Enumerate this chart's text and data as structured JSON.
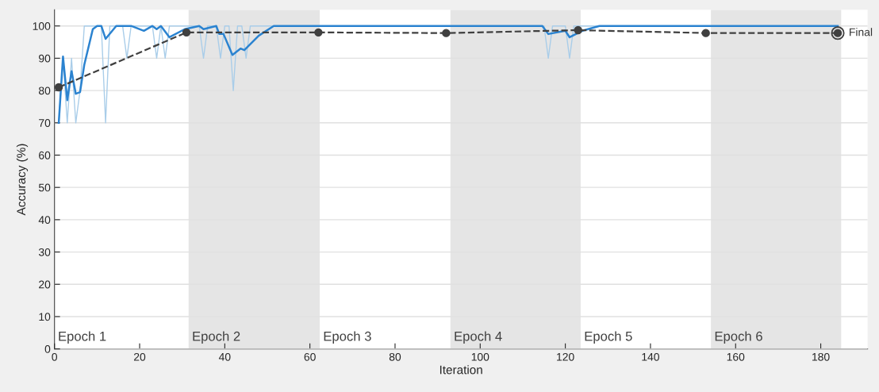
{
  "chart_data": {
    "type": "line",
    "xlabel": "Iteration",
    "ylabel": "Accuracy (%)",
    "xlim": [
      0,
      191
    ],
    "xticks": [
      0,
      20,
      40,
      60,
      80,
      100,
      120,
      140,
      160,
      180
    ],
    "ylim": [
      0,
      105
    ],
    "yticks": [
      0,
      10,
      20,
      30,
      40,
      50,
      60,
      70,
      80,
      90,
      100
    ],
    "grid": "y",
    "legend": false,
    "bands": [
      {
        "axis": "x",
        "from": 31.5,
        "to": 62.3,
        "label": "Epoch 2",
        "color": "#e5e5e5"
      },
      {
        "axis": "x",
        "from": 93,
        "to": 123.6,
        "label": "Epoch 4",
        "color": "#e5e5e5"
      },
      {
        "axis": "x",
        "from": 154.2,
        "to": 184.8,
        "label": "Epoch 6",
        "color": "#e5e5e5"
      }
    ],
    "series": [
      {
        "color": "#a9cde9",
        "marker": "none",
        "line_style": "solid",
        "x": [
          1,
          2,
          3,
          4,
          5,
          6,
          7,
          11,
          12,
          13,
          16,
          17,
          18,
          23,
          24,
          25,
          26,
          27,
          34,
          35,
          36,
          38,
          39,
          40,
          41,
          42,
          43,
          44,
          45,
          46,
          115,
          116,
          117,
          120,
          121,
          122,
          184
        ],
        "values": [
          70,
          90,
          70,
          90,
          70,
          80,
          100,
          100,
          70,
          100,
          100,
          90,
          100,
          100,
          90,
          100,
          90,
          100,
          100,
          90,
          100,
          100,
          90,
          100,
          100,
          80,
          100,
          100,
          90,
          100,
          100,
          90,
          100,
          100,
          90,
          100,
          100
        ]
      },
      {
        "color": "#2b83d0",
        "marker": "none",
        "line_style": "solid",
        "x": [
          1,
          2,
          3,
          4,
          5,
          6,
          7,
          9,
          10,
          11,
          12,
          14.5,
          18,
          21,
          23,
          24,
          25,
          27,
          30.6,
          34,
          35,
          38,
          38.7,
          39.7,
          41.8,
          43.7,
          44.6,
          48,
          51.5,
          114.6,
          116,
          120,
          121,
          124,
          128,
          184
        ],
        "values": [
          70,
          90.5,
          77,
          86,
          79,
          79.5,
          88,
          99,
          100,
          100,
          96,
          100,
          100,
          98.5,
          100,
          99,
          100,
          96.5,
          99,
          100,
          99,
          100,
          97.5,
          97.5,
          91,
          93,
          92.5,
          97,
          100,
          100,
          97.5,
          98.5,
          96.5,
          98.5,
          100,
          100
        ]
      },
      {
        "color": "#404040",
        "marker": "circle",
        "line_style": "dashed",
        "x": [
          1,
          31,
          62,
          92,
          123,
          153,
          184
        ],
        "values": [
          81,
          98,
          98,
          97.8,
          98.7,
          97.8,
          97.8
        ]
      }
    ],
    "annotations": [
      {
        "text": "Final",
        "x": 184,
        "y": 97.8
      },
      "Epoch 1",
      "Epoch 3",
      "Epoch 5"
    ]
  }
}
